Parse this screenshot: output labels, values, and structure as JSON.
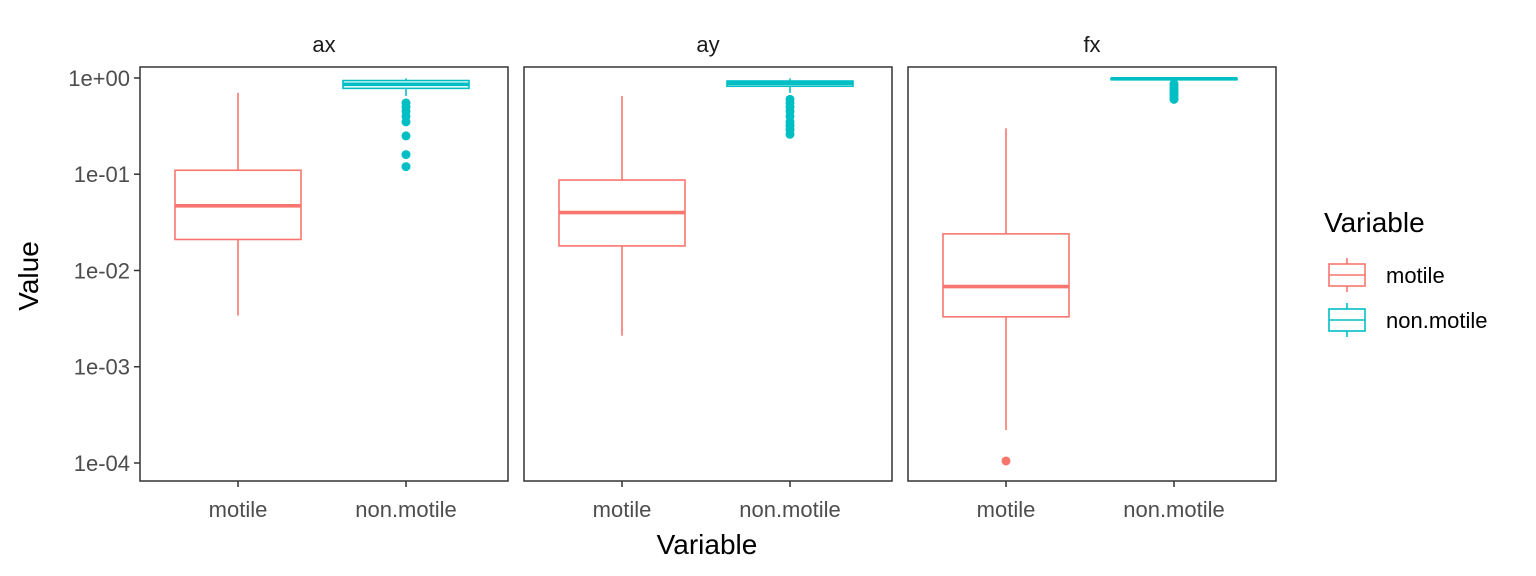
{
  "chart_data": {
    "type": "boxplot",
    "facet_titles": [
      "ax",
      "ay",
      "fx"
    ],
    "categories": [
      "motile",
      "non.motile"
    ],
    "xlabel": "Variable",
    "ylabel": "Value",
    "y_scale": "log10",
    "ylim": [
      6.5e-05,
      1.3
    ],
    "y_ticks": [
      {
        "value": 0.0001,
        "label": "1e-04"
      },
      {
        "value": 0.001,
        "label": "1e-03"
      },
      {
        "value": 0.01,
        "label": "1e-02"
      },
      {
        "value": 0.1,
        "label": "1e-01"
      },
      {
        "value": 1,
        "label": "1e+00"
      }
    ],
    "grid": false,
    "legend": {
      "title": "Variable",
      "position": "right",
      "entries": [
        {
          "label": "motile",
          "color": "#F8766D"
        },
        {
          "label": "non.motile",
          "color": "#00BFC4"
        }
      ]
    },
    "panels": [
      {
        "facet": "ax",
        "boxes": [
          {
            "category": "motile",
            "min": 0.0034,
            "q1": 0.021,
            "median": 0.047,
            "q3": 0.11,
            "max": 0.7,
            "outliers": []
          },
          {
            "category": "non.motile",
            "min": 0.65,
            "q1": 0.78,
            "median": 0.86,
            "q3": 0.94,
            "max": 0.99,
            "outliers": [
              0.55,
              0.5,
              0.45,
              0.4,
              0.35,
              0.25,
              0.16,
              0.12
            ]
          }
        ]
      },
      {
        "facet": "ay",
        "boxes": [
          {
            "category": "motile",
            "min": 0.0021,
            "q1": 0.018,
            "median": 0.04,
            "q3": 0.087,
            "max": 0.65,
            "outliers": []
          },
          {
            "category": "non.motile",
            "min": 0.7,
            "q1": 0.82,
            "median": 0.88,
            "q3": 0.93,
            "max": 0.99,
            "outliers": [
              0.6,
              0.55,
              0.5,
              0.45,
              0.4,
              0.35,
              0.32,
              0.29,
              0.26
            ]
          }
        ]
      },
      {
        "facet": "fx",
        "boxes": [
          {
            "category": "motile",
            "min": 0.00022,
            "q1": 0.0033,
            "median": 0.0068,
            "q3": 0.024,
            "max": 0.3,
            "outliers": [
              0.000105
            ]
          },
          {
            "category": "non.motile",
            "min": 0.9,
            "q1": 0.96,
            "median": 0.98,
            "q3": 0.99,
            "max": 1.0,
            "outliers": [
              0.87,
              0.82,
              0.78,
              0.74,
              0.7,
              0.66,
              0.62,
              0.6
            ]
          }
        ]
      }
    ]
  }
}
